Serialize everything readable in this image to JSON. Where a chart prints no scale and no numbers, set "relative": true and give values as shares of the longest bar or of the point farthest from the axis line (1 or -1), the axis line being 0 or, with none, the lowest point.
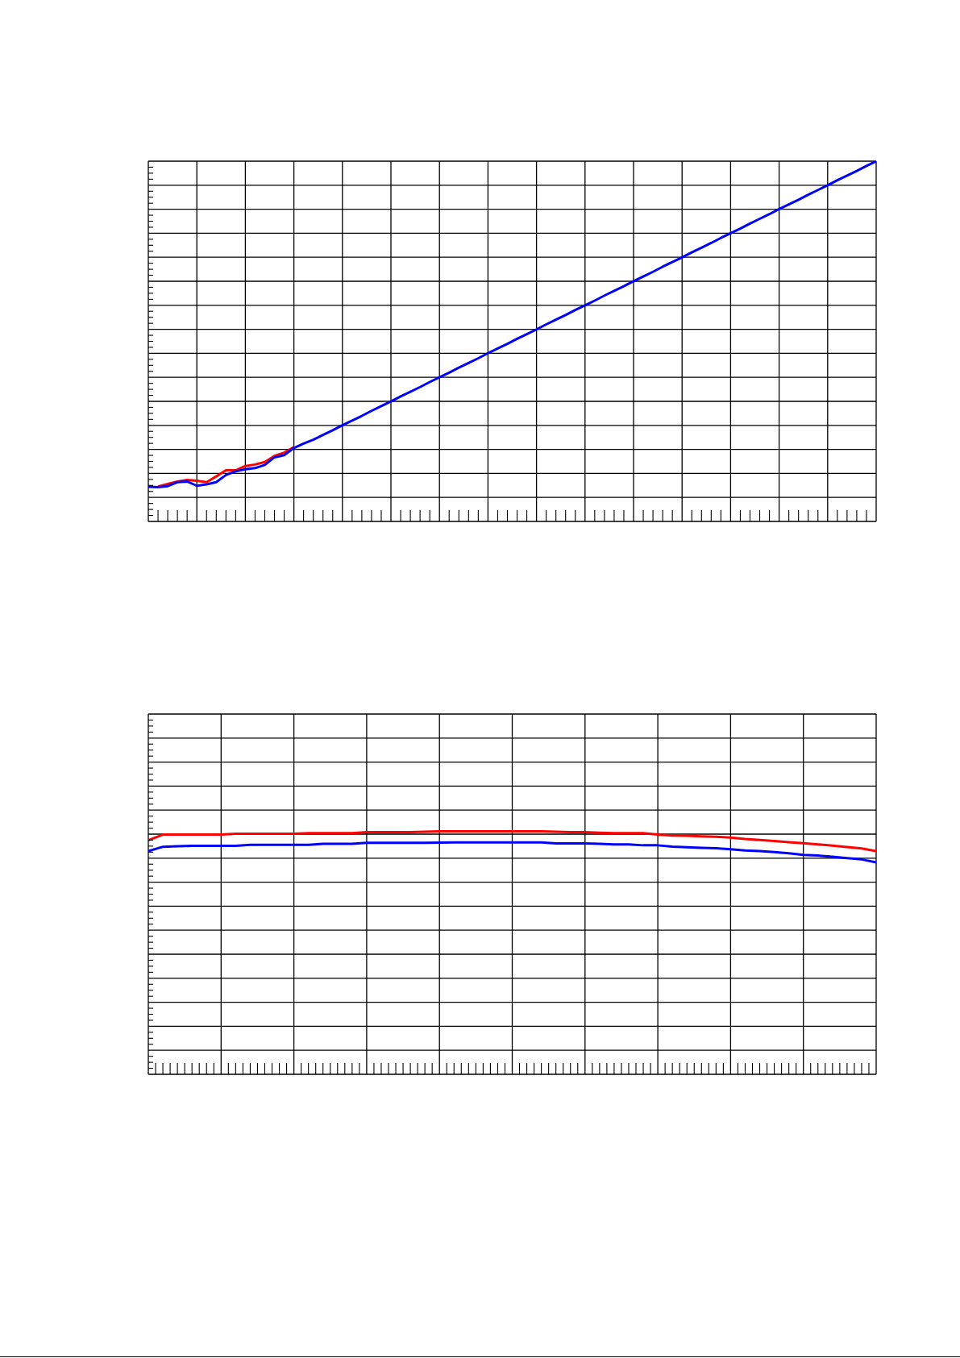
{
  "chart_data": [
    {
      "type": "line",
      "relative": true,
      "grid": true,
      "categories": [
        null,
        null,
        null,
        null,
        null,
        null,
        null,
        null,
        null,
        null,
        null,
        null,
        null,
        null,
        null,
        null,
        null,
        null,
        null,
        null,
        null,
        null,
        null,
        null,
        null,
        null,
        null,
        null,
        null,
        null,
        null,
        null,
        null,
        null,
        null,
        null,
        null,
        null,
        null,
        null,
        null,
        null,
        null,
        null,
        null,
        null,
        null,
        null,
        null,
        null,
        null,
        null,
        null,
        null,
        null,
        null,
        null,
        null,
        null,
        null,
        null,
        null,
        null,
        null,
        null,
        null,
        null,
        null,
        null,
        null,
        null,
        null,
        null,
        null,
        null,
        null
      ],
      "series": [
        {
          "color": "#ff0000",
          "values": [
            null,
            0.097,
            0.104,
            0.111,
            0.115,
            0.113,
            0.109,
            0.125,
            0.142,
            0.142,
            0.154,
            0.158,
            0.165,
            0.182,
            0.191,
            0.206,
            null,
            null,
            null,
            null,
            null,
            null,
            null,
            null,
            null,
            null,
            null,
            null,
            null,
            null,
            null,
            null,
            null,
            null,
            null,
            null,
            null,
            null,
            null,
            null,
            null,
            null,
            null,
            null,
            null,
            null,
            null,
            null,
            null,
            null,
            null,
            null,
            null,
            null,
            null,
            null,
            null,
            null,
            null,
            null,
            null,
            null,
            null,
            null,
            null,
            null,
            null,
            null,
            null,
            null,
            null,
            null,
            null,
            null,
            null,
            null
          ]
        },
        {
          "color": "#0000ff",
          "values": [
            0.096,
            0.095,
            0.098,
            0.109,
            0.111,
            0.099,
            0.103,
            0.109,
            0.129,
            0.139,
            0.145,
            0.148,
            0.157,
            0.178,
            0.184,
            0.204,
            0.216,
            0.227,
            0.24,
            0.253,
            0.267,
            0.28,
            0.293,
            0.307,
            0.32,
            0.333,
            0.347,
            0.36,
            0.373,
            0.387,
            0.4,
            0.413,
            0.427,
            0.44,
            0.453,
            0.467,
            0.48,
            0.493,
            0.507,
            0.52,
            0.533,
            0.547,
            0.56,
            0.573,
            0.587,
            0.6,
            0.613,
            0.627,
            0.64,
            0.653,
            0.667,
            0.68,
            0.693,
            0.707,
            0.72,
            0.733,
            0.747,
            0.76,
            0.773,
            0.787,
            0.8,
            0.813,
            0.827,
            0.84,
            0.853,
            0.867,
            0.88,
            0.893,
            0.907,
            0.92,
            0.933,
            0.947,
            0.96,
            0.973,
            0.987,
            1
          ]
        }
      ]
    },
    {
      "type": "line",
      "relative": true,
      "grid": true,
      "categories": [
        null,
        null,
        null,
        null,
        null,
        null,
        null,
        null,
        null,
        null,
        null,
        null,
        null,
        null,
        null,
        null,
        null,
        null,
        null,
        null,
        null,
        null,
        null,
        null,
        null,
        null,
        null,
        null,
        null,
        null,
        null,
        null,
        null,
        null,
        null,
        null,
        null,
        null,
        null,
        null,
        null,
        null,
        null,
        null,
        null,
        null,
        null,
        null,
        null,
        null,
        null
      ],
      "series": [
        {
          "color": "#ff0000",
          "values": [
            0.963,
            0.986,
            0.986,
            0.986,
            0.986,
            0.986,
            0.99,
            0.99,
            0.99,
            0.99,
            0.99,
            0.992,
            0.992,
            0.992,
            0.992,
            0.996,
            0.996,
            0.996,
            0.996,
            0.998,
            1,
            1,
            1,
            1,
            1,
            1,
            1,
            1,
            0.998,
            0.996,
            0.996,
            0.994,
            0.992,
            0.992,
            0.992,
            0.986,
            0.982,
            0.981,
            0.979,
            0.977,
            0.974,
            0.968,
            0.964,
            0.96,
            0.955,
            0.951,
            0.946,
            0.941,
            0.935,
            0.929,
            0.918
          ]
        },
        {
          "color": "#0000ff",
          "values": [
            0.918,
            0.936,
            0.938,
            0.94,
            0.94,
            0.94,
            0.94,
            0.944,
            0.944,
            0.944,
            0.944,
            0.944,
            0.948,
            0.948,
            0.948,
            0.952,
            0.952,
            0.952,
            0.952,
            0.952,
            0.953,
            0.954,
            0.954,
            0.954,
            0.954,
            0.954,
            0.954,
            0.954,
            0.95,
            0.95,
            0.95,
            0.948,
            0.946,
            0.946,
            0.942,
            0.942,
            0.937,
            0.934,
            0.932,
            0.93,
            0.926,
            0.921,
            0.918,
            0.914,
            0.909,
            0.903,
            0.9,
            0.895,
            0.889,
            0.884,
            0.872
          ]
        }
      ]
    }
  ]
}
